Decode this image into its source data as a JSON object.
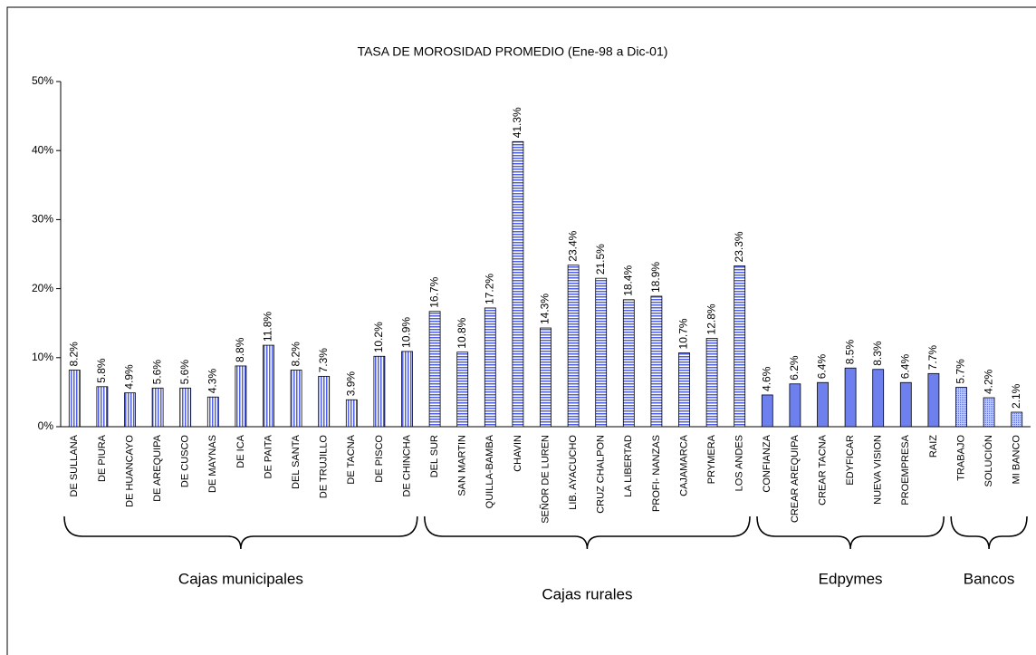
{
  "chart_data": {
    "type": "bar",
    "title": "TASA DE MOROSIDAD PROMEDIO (Ene-98 a Dic-01)",
    "ylim": [
      0,
      50
    ],
    "yticks": [
      {
        "value": 0,
        "label": "0%"
      },
      {
        "value": 10,
        "label": "10%"
      },
      {
        "value": 20,
        "label": "20%"
      },
      {
        "value": 30,
        "label": "30%"
      },
      {
        "value": 40,
        "label": "40%"
      },
      {
        "value": 50,
        "label": "50%"
      }
    ],
    "groups": [
      {
        "name": "Cajas municipales",
        "pattern": "vertical-stripes",
        "color": "#5060e0",
        "categories": [
          "DE SULLANA",
          "DE PIURA",
          "DE HUANCAYO",
          "DE AREQUIPA",
          "DE CUSCO",
          "DE MAYNAS",
          "DE ICA",
          "DE PAITA",
          "DEL SANTA",
          "DE TRUJILLO",
          "DE TACNA",
          "DE PISCO",
          "DE CHINCHA"
        ],
        "values": [
          8.2,
          5.8,
          4.9,
          5.6,
          5.6,
          4.3,
          8.8,
          11.8,
          8.2,
          7.3,
          3.9,
          10.2,
          10.9
        ],
        "value_labels": [
          "8.2%",
          "5.8%",
          "4.9%",
          "5.6%",
          "5.6%",
          "4.3%",
          "8.8%",
          "11.8%",
          "8.2%",
          "7.3%",
          "3.9%",
          "10.2%",
          "10.9%"
        ]
      },
      {
        "name": "Cajas rurales",
        "pattern": "horizontal-stripes",
        "color": "#5060e0",
        "categories": [
          "DEL SUR",
          "SAN MARTIN",
          "QUILLA-BAMBA",
          "CHAVIN",
          "SEÑOR DE LUREN",
          "LIB. AYACUCHO",
          "CRUZ CHALPON",
          "LA LIBERTAD",
          "PROFI- NANZAS",
          "CAJAMARCA",
          "PRYMERA",
          "LOS ANDES"
        ],
        "values": [
          16.7,
          10.8,
          17.2,
          41.3,
          14.3,
          23.4,
          21.5,
          18.4,
          18.9,
          10.7,
          12.8,
          23.3
        ],
        "value_labels": [
          "16.7%",
          "10.8%",
          "17.2%",
          "41.3%",
          "14.3%",
          "23.4%",
          "21.5%",
          "18.4%",
          "18.9%",
          "10.7%",
          "12.8%",
          "23.3%"
        ]
      },
      {
        "name": "Edpymes",
        "pattern": "solid",
        "color": "#6e80ee",
        "categories": [
          "CONFIANZA",
          "CREAR AREQUIPA",
          "CREAR TACNA",
          "EDYFICAR",
          "NUEVA VISION",
          "PROEMPRESA",
          "RAIZ"
        ],
        "values": [
          4.6,
          6.2,
          6.4,
          8.5,
          8.3,
          6.4,
          7.7
        ],
        "value_labels": [
          "4.6%",
          "6.2%",
          "6.4%",
          "8.5%",
          "8.3%",
          "6.4%",
          "7.7%"
        ]
      },
      {
        "name": "Bancos",
        "pattern": "dots",
        "color": "#7a86d8",
        "categories": [
          "TRABAJO",
          "SOLUCIÓN",
          "MI BANCO"
        ],
        "values": [
          5.7,
          4.2,
          2.1
        ],
        "value_labels": [
          "5.7%",
          "4.2%",
          "2.1%"
        ]
      }
    ]
  }
}
